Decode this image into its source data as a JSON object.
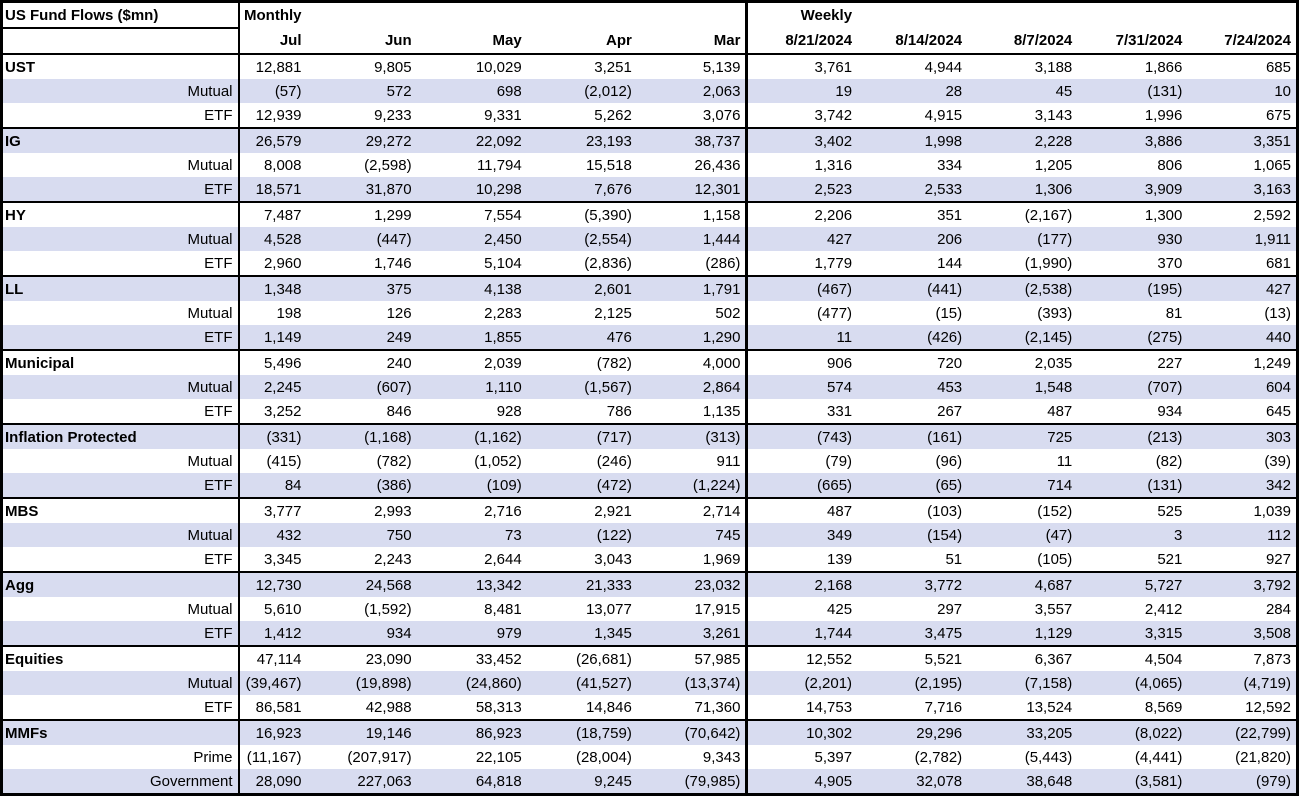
{
  "header": {
    "title": "US Fund Flows ($mn)",
    "monthly_label": "Monthly",
    "weekly_label": "Weekly",
    "monthly_columns": [
      "Jul",
      "Jun",
      "May",
      "Apr",
      "Mar"
    ],
    "weekly_columns": [
      "8/21/2024",
      "8/14/2024",
      "8/7/2024",
      "7/31/2024",
      "7/24/2024"
    ]
  },
  "colors": {
    "row_band": "#D8DCF0",
    "border": "#000000",
    "background": "#FFFFFF",
    "text": "#000000"
  },
  "chart_data": {
    "type": "table",
    "title": "US Fund Flows ($mn)",
    "column_groups": [
      "Monthly",
      "Weekly"
    ],
    "columns": [
      "Jul",
      "Jun",
      "May",
      "Apr",
      "Mar",
      "8/21/2024",
      "8/14/2024",
      "8/7/2024",
      "7/31/2024",
      "7/24/2024"
    ]
  },
  "groups": [
    {
      "name": "UST",
      "rows": [
        {
          "label": "UST",
          "monthly": [
            "12,881",
            "9,805",
            "10,029",
            "3,251",
            "5,139"
          ],
          "weekly": [
            "3,761",
            "4,944",
            "3,188",
            "1,866",
            "685"
          ]
        },
        {
          "label": "Mutual",
          "monthly": [
            "(57)",
            "572",
            "698",
            "(2,012)",
            "2,063"
          ],
          "weekly": [
            "19",
            "28",
            "45",
            "(131)",
            "10"
          ]
        },
        {
          "label": "ETF",
          "monthly": [
            "12,939",
            "9,233",
            "9,331",
            "5,262",
            "3,076"
          ],
          "weekly": [
            "3,742",
            "4,915",
            "3,143",
            "1,996",
            "675"
          ]
        }
      ]
    },
    {
      "name": "IG",
      "rows": [
        {
          "label": "IG",
          "monthly": [
            "26,579",
            "29,272",
            "22,092",
            "23,193",
            "38,737"
          ],
          "weekly": [
            "3,402",
            "1,998",
            "2,228",
            "3,886",
            "3,351"
          ]
        },
        {
          "label": "Mutual",
          "monthly": [
            "8,008",
            "(2,598)",
            "11,794",
            "15,518",
            "26,436"
          ],
          "weekly": [
            "1,316",
            "334",
            "1,205",
            "806",
            "1,065"
          ]
        },
        {
          "label": "ETF",
          "monthly": [
            "18,571",
            "31,870",
            "10,298",
            "7,676",
            "12,301"
          ],
          "weekly": [
            "2,523",
            "2,533",
            "1,306",
            "3,909",
            "3,163"
          ]
        }
      ]
    },
    {
      "name": "HY",
      "rows": [
        {
          "label": "HY",
          "monthly": [
            "7,487",
            "1,299",
            "7,554",
            "(5,390)",
            "1,158"
          ],
          "weekly": [
            "2,206",
            "351",
            "(2,167)",
            "1,300",
            "2,592"
          ]
        },
        {
          "label": "Mutual",
          "monthly": [
            "4,528",
            "(447)",
            "2,450",
            "(2,554)",
            "1,444"
          ],
          "weekly": [
            "427",
            "206",
            "(177)",
            "930",
            "1,911"
          ]
        },
        {
          "label": "ETF",
          "monthly": [
            "2,960",
            "1,746",
            "5,104",
            "(2,836)",
            "(286)"
          ],
          "weekly": [
            "1,779",
            "144",
            "(1,990)",
            "370",
            "681"
          ]
        }
      ]
    },
    {
      "name": "LL",
      "rows": [
        {
          "label": "LL",
          "monthly": [
            "1,348",
            "375",
            "4,138",
            "2,601",
            "1,791"
          ],
          "weekly": [
            "(467)",
            "(441)",
            "(2,538)",
            "(195)",
            "427"
          ]
        },
        {
          "label": "Mutual",
          "monthly": [
            "198",
            "126",
            "2,283",
            "2,125",
            "502"
          ],
          "weekly": [
            "(477)",
            "(15)",
            "(393)",
            "81",
            "(13)"
          ]
        },
        {
          "label": "ETF",
          "monthly": [
            "1,149",
            "249",
            "1,855",
            "476",
            "1,290"
          ],
          "weekly": [
            "11",
            "(426)",
            "(2,145)",
            "(275)",
            "440"
          ]
        }
      ]
    },
    {
      "name": "Municipal",
      "rows": [
        {
          "label": "Municipal",
          "monthly": [
            "5,496",
            "240",
            "2,039",
            "(782)",
            "4,000"
          ],
          "weekly": [
            "906",
            "720",
            "2,035",
            "227",
            "1,249"
          ]
        },
        {
          "label": "Mutual",
          "monthly": [
            "2,245",
            "(607)",
            "1,110",
            "(1,567)",
            "2,864"
          ],
          "weekly": [
            "574",
            "453",
            "1,548",
            "(707)",
            "604"
          ]
        },
        {
          "label": "ETF",
          "monthly": [
            "3,252",
            "846",
            "928",
            "786",
            "1,135"
          ],
          "weekly": [
            "331",
            "267",
            "487",
            "934",
            "645"
          ]
        }
      ]
    },
    {
      "name": "Inflation Protected",
      "rows": [
        {
          "label": "Inflation Protected",
          "monthly": [
            "(331)",
            "(1,168)",
            "(1,162)",
            "(717)",
            "(313)"
          ],
          "weekly": [
            "(743)",
            "(161)",
            "725",
            "(213)",
            "303"
          ]
        },
        {
          "label": "Mutual",
          "monthly": [
            "(415)",
            "(782)",
            "(1,052)",
            "(246)",
            "911"
          ],
          "weekly": [
            "(79)",
            "(96)",
            "11",
            "(82)",
            "(39)"
          ]
        },
        {
          "label": "ETF",
          "monthly": [
            "84",
            "(386)",
            "(109)",
            "(472)",
            "(1,224)"
          ],
          "weekly": [
            "(665)",
            "(65)",
            "714",
            "(131)",
            "342"
          ]
        }
      ]
    },
    {
      "name": "MBS",
      "rows": [
        {
          "label": "MBS",
          "monthly": [
            "3,777",
            "2,993",
            "2,716",
            "2,921",
            "2,714"
          ],
          "weekly": [
            "487",
            "(103)",
            "(152)",
            "525",
            "1,039"
          ]
        },
        {
          "label": "Mutual",
          "monthly": [
            "432",
            "750",
            "73",
            "(122)",
            "745"
          ],
          "weekly": [
            "349",
            "(154)",
            "(47)",
            "3",
            "112"
          ]
        },
        {
          "label": "ETF",
          "monthly": [
            "3,345",
            "2,243",
            "2,644",
            "3,043",
            "1,969"
          ],
          "weekly": [
            "139",
            "51",
            "(105)",
            "521",
            "927"
          ]
        }
      ]
    },
    {
      "name": "Agg",
      "rows": [
        {
          "label": "Agg",
          "monthly": [
            "12,730",
            "24,568",
            "13,342",
            "21,333",
            "23,032"
          ],
          "weekly": [
            "2,168",
            "3,772",
            "4,687",
            "5,727",
            "3,792"
          ]
        },
        {
          "label": "Mutual",
          "monthly": [
            "5,610",
            "(1,592)",
            "8,481",
            "13,077",
            "17,915"
          ],
          "weekly": [
            "425",
            "297",
            "3,557",
            "2,412",
            "284"
          ]
        },
        {
          "label": "ETF",
          "monthly": [
            "1,412",
            "934",
            "979",
            "1,345",
            "3,261"
          ],
          "weekly": [
            "1,744",
            "3,475",
            "1,129",
            "3,315",
            "3,508"
          ]
        }
      ]
    },
    {
      "name": "Equities",
      "rows": [
        {
          "label": "Equities",
          "monthly": [
            "47,114",
            "23,090",
            "33,452",
            "(26,681)",
            "57,985"
          ],
          "weekly": [
            "12,552",
            "5,521",
            "6,367",
            "4,504",
            "7,873"
          ]
        },
        {
          "label": "Mutual",
          "monthly": [
            "(39,467)",
            "(19,898)",
            "(24,860)",
            "(41,527)",
            "(13,374)"
          ],
          "weekly": [
            "(2,201)",
            "(2,195)",
            "(7,158)",
            "(4,065)",
            "(4,719)"
          ]
        },
        {
          "label": "ETF",
          "monthly": [
            "86,581",
            "42,988",
            "58,313",
            "14,846",
            "71,360"
          ],
          "weekly": [
            "14,753",
            "7,716",
            "13,524",
            "8,569",
            "12,592"
          ]
        }
      ]
    },
    {
      "name": "MMFs",
      "rows": [
        {
          "label": "MMFs",
          "monthly": [
            "16,923",
            "19,146",
            "86,923",
            "(18,759)",
            "(70,642)"
          ],
          "weekly": [
            "10,302",
            "29,296",
            "33,205",
            "(8,022)",
            "(22,799)"
          ]
        },
        {
          "label": "Prime",
          "monthly": [
            "(11,167)",
            "(207,917)",
            "22,105",
            "(28,004)",
            "9,343"
          ],
          "weekly": [
            "5,397",
            "(2,782)",
            "(5,443)",
            "(4,441)",
            "(21,820)"
          ]
        },
        {
          "label": "Government",
          "monthly": [
            "28,090",
            "227,063",
            "64,818",
            "9,245",
            "(79,985)"
          ],
          "weekly": [
            "4,905",
            "32,078",
            "38,648",
            "(3,581)",
            "(979)"
          ]
        }
      ]
    }
  ]
}
